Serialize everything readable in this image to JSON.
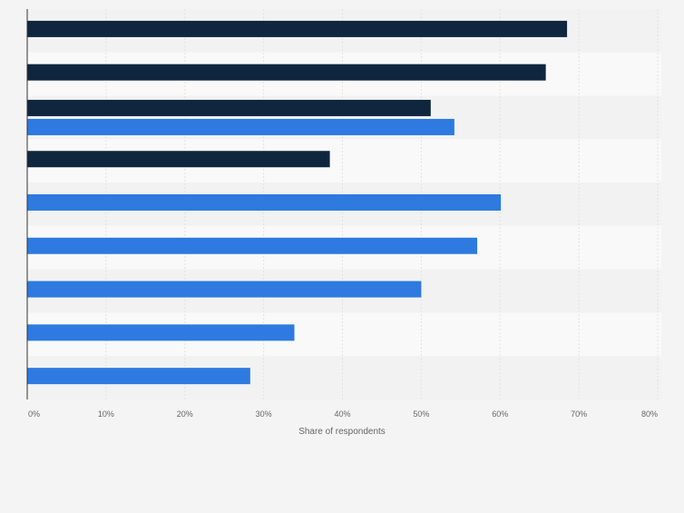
{
  "chart_data": {
    "type": "bar",
    "orientation": "horizontal",
    "categories": [
      "",
      "",
      "",
      "",
      "",
      "",
      "",
      "",
      ""
    ],
    "series": [
      {
        "color": "#10263f",
        "values": [
          68.5,
          65.8,
          51.2,
          38.4,
          null,
          null,
          null,
          null,
          null
        ]
      },
      {
        "color": "#2e7ae0",
        "values": [
          null,
          null,
          54.2,
          null,
          60.1,
          57.1,
          50.0,
          33.9,
          28.3
        ]
      }
    ],
    "xlabel": "Share of respondents",
    "ylabel": "",
    "xlim": [
      0,
      80
    ],
    "xticks": [
      0,
      10,
      20,
      30,
      40,
      50,
      60,
      70,
      80
    ],
    "xtick_labels": [
      "0%",
      "10%",
      "20%",
      "30%",
      "40%",
      "50%",
      "60%",
      "70%",
      "80%"
    ],
    "grid": true,
    "legend": "none",
    "colors": {
      "band_light": "#f9f9f9",
      "band_dark": "#f2f2f2",
      "grid": "#e2e2e2",
      "axis": "#333333",
      "tick_text": "#666666"
    }
  }
}
